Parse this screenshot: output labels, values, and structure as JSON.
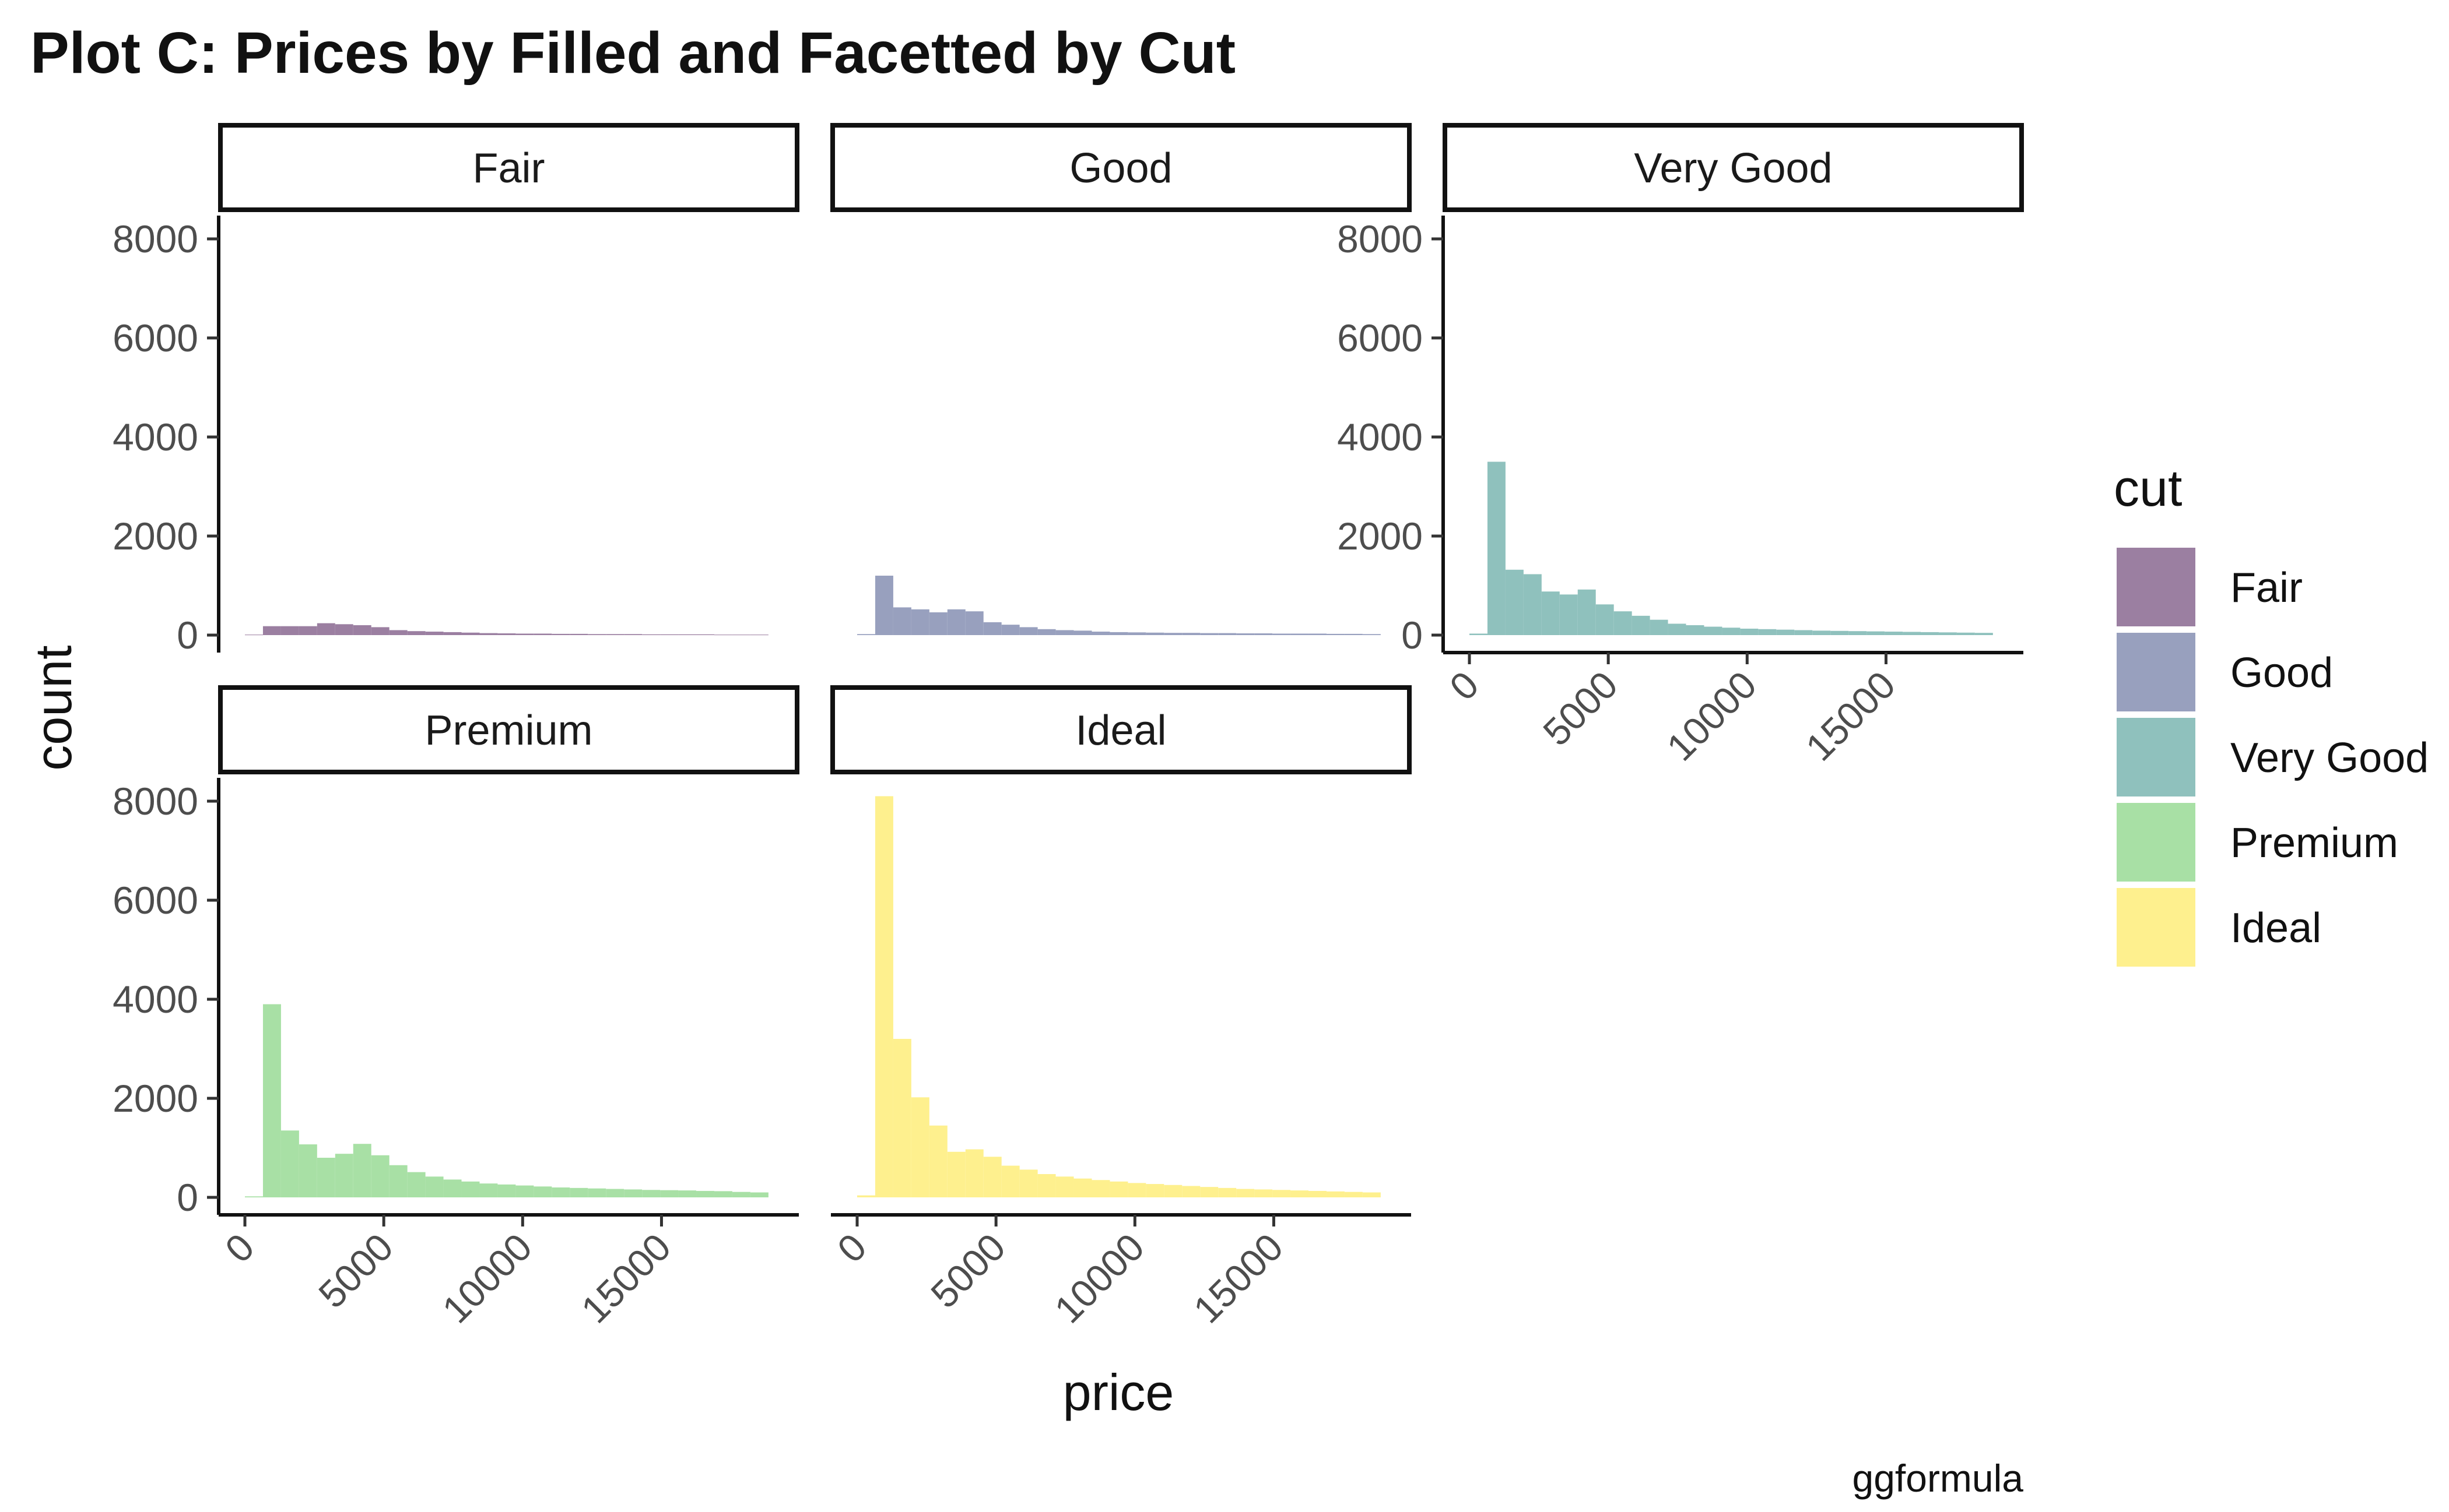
{
  "chart_data": {
    "type": "bar",
    "title": "Plot C: Prices by Filled and Facetted by Cut",
    "caption": "ggformula",
    "xlabel": "price",
    "ylabel": "count",
    "xlim": [
      0,
      19000
    ],
    "ylim": [
      0,
      8000
    ],
    "x_ticks": [
      0,
      5000,
      10000,
      15000
    ],
    "y_ticks": [
      0,
      2000,
      4000,
      6000,
      8000
    ],
    "grid": false,
    "legend": {
      "title": "cut",
      "position": "right"
    },
    "bin_width": 650,
    "bin_start": 0,
    "facets": [
      {
        "name": "Fair",
        "color": "#9b7fa1",
        "counts": [
          10,
          180,
          180,
          180,
          240,
          220,
          200,
          160,
          100,
          80,
          70,
          60,
          50,
          40,
          35,
          30,
          30,
          25,
          25,
          20,
          20,
          20,
          15,
          15,
          15,
          15,
          10,
          10,
          10
        ]
      },
      {
        "name": "Good",
        "color": "#98a0be",
        "counts": [
          20,
          1200,
          560,
          520,
          460,
          520,
          480,
          260,
          210,
          160,
          120,
          100,
          90,
          70,
          60,
          55,
          50,
          45,
          45,
          40,
          40,
          35,
          35,
          30,
          30,
          30,
          25,
          25,
          20
        ]
      },
      {
        "name": "Very Good",
        "color": "#8fc1bd",
        "counts": [
          30,
          3500,
          1320,
          1230,
          880,
          820,
          920,
          620,
          480,
          390,
          310,
          230,
          200,
          170,
          150,
          130,
          120,
          110,
          100,
          90,
          85,
          80,
          75,
          70,
          65,
          60,
          55,
          50,
          45
        ]
      },
      {
        "name": "Premium",
        "color": "#a8e0a5",
        "counts": [
          20,
          3900,
          1350,
          1070,
          800,
          880,
          1080,
          850,
          650,
          510,
          420,
          360,
          320,
          280,
          260,
          240,
          220,
          200,
          190,
          180,
          170,
          160,
          150,
          145,
          140,
          130,
          125,
          110,
          100
        ]
      },
      {
        "name": "Ideal",
        "color": "#fef08e",
        "counts": [
          40,
          8100,
          3200,
          2020,
          1450,
          920,
          970,
          820,
          640,
          560,
          470,
          420,
          380,
          350,
          320,
          290,
          270,
          250,
          230,
          210,
          190,
          170,
          160,
          150,
          140,
          130,
          120,
          110,
          100
        ]
      }
    ]
  }
}
